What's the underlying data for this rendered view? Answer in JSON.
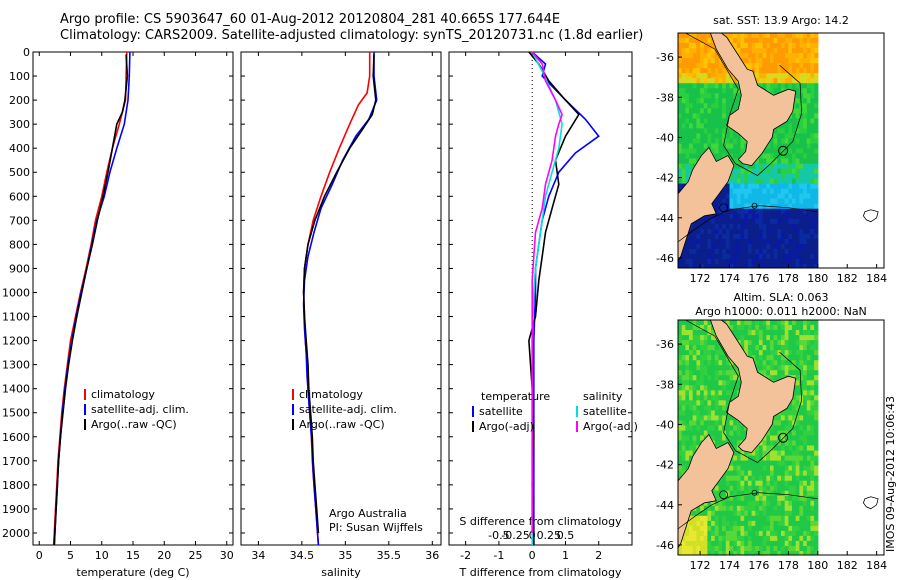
{
  "title": {
    "line1": "Argo profile: CS 5903647_60 01-Aug-2012 20120804_281 40.665S 177.644E",
    "line2": "Climatology: CARS2009. Satellite-adjusted climatology: synTS_20120731.nc (1.8d earlier)"
  },
  "colors": {
    "climatology": "#ff0000",
    "satellite": "#0000ff",
    "argo": "#000000",
    "cyan": "#00e0e0",
    "magenta": "#ff00ff",
    "land": "#f4c29a"
  },
  "side_text": "IMOS 09-Aug-2012 10:06:43",
  "chart_data": [
    {
      "type": "line",
      "panel": "temperature",
      "xlabel": "temperature (deg C)",
      "ylabel": "",
      "xlim": [
        -1,
        31
      ],
      "ylim": [
        2050,
        0
      ],
      "xticks": [
        0,
        5,
        10,
        15,
        20,
        25,
        30
      ],
      "yticks": [
        0,
        100,
        200,
        300,
        400,
        500,
        600,
        700,
        800,
        900,
        1000,
        1100,
        1200,
        1300,
        1400,
        1500,
        1600,
        1700,
        1800,
        1900,
        2000
      ],
      "legend": [
        "climatology",
        "satellite-adj. clim.",
        "Argo(..raw -QC)"
      ],
      "series": [
        {
          "name": "climatology",
          "color": "climatology",
          "points": [
            [
              14,
              0
            ],
            [
              13.9,
              100
            ],
            [
              13.8,
              200
            ],
            [
              12.8,
              300
            ],
            [
              11.7,
              400
            ],
            [
              10.8,
              500
            ],
            [
              10.0,
              600
            ],
            [
              9.0,
              700
            ],
            [
              8.3,
              800
            ],
            [
              7.5,
              900
            ],
            [
              6.6,
              1000
            ],
            [
              5.8,
              1100
            ],
            [
              5.0,
              1200
            ],
            [
              4.5,
              1300
            ],
            [
              4.0,
              1400
            ],
            [
              3.6,
              1500
            ],
            [
              3.3,
              1600
            ],
            [
              3.0,
              1700
            ],
            [
              2.8,
              1800
            ],
            [
              2.6,
              1900
            ],
            [
              2.4,
              2000
            ],
            [
              2.3,
              2050
            ]
          ]
        },
        {
          "name": "satellite-adj. clim.",
          "color": "satellite",
          "points": [
            [
              14.5,
              0
            ],
            [
              14.4,
              100
            ],
            [
              14.2,
              200
            ],
            [
              13.6,
              300
            ],
            [
              12.4,
              400
            ],
            [
              11.3,
              500
            ],
            [
              10.4,
              600
            ],
            [
              9.2,
              700
            ],
            [
              8.4,
              800
            ],
            [
              7.6,
              900
            ],
            [
              6.7,
              1000
            ],
            [
              5.9,
              1100
            ],
            [
              5.2,
              1200
            ],
            [
              4.6,
              1300
            ],
            [
              4.1,
              1400
            ],
            [
              3.7,
              1500
            ],
            [
              3.4,
              1600
            ],
            [
              3.1,
              1700
            ],
            [
              2.9,
              1800
            ],
            [
              2.7,
              1900
            ],
            [
              2.5,
              2000
            ],
            [
              2.4,
              2050
            ]
          ]
        },
        {
          "name": "Argo(..raw -QC)",
          "color": "argo",
          "points": [
            [
              13.9,
              10
            ],
            [
              14.1,
              100
            ],
            [
              13.7,
              200
            ],
            [
              13.3,
              250
            ],
            [
              12.4,
              300
            ],
            [
              11.7,
              400
            ],
            [
              11.0,
              500
            ],
            [
              10.2,
              600
            ],
            [
              9.3,
              700
            ],
            [
              8.5,
              800
            ],
            [
              7.6,
              900
            ],
            [
              6.8,
              1000
            ],
            [
              6.0,
              1100
            ],
            [
              5.3,
              1200
            ],
            [
              4.7,
              1300
            ],
            [
              4.2,
              1400
            ],
            [
              3.8,
              1500
            ],
            [
              3.4,
              1600
            ],
            [
              3.1,
              1700
            ],
            [
              2.9,
              1800
            ],
            [
              2.7,
              1900
            ],
            [
              2.5,
              2000
            ],
            [
              2.4,
              2050
            ]
          ]
        }
      ]
    },
    {
      "type": "line",
      "panel": "salinity",
      "xlabel": "salinity",
      "xlim": [
        33.8,
        36.1
      ],
      "ylim": [
        2050,
        0
      ],
      "xticks": [
        34,
        34.5,
        35,
        35.5,
        36
      ],
      "legend": [
        "climatology",
        "satellite-adj. clim.",
        "Argo(..raw -QC)"
      ],
      "annotation": [
        "Argo Australia",
        "PI: Susan Wijffels"
      ],
      "series": [
        {
          "name": "climatology",
          "color": "climatology",
          "points": [
            [
              35.28,
              0
            ],
            [
              35.28,
              100
            ],
            [
              35.25,
              170
            ],
            [
              35.15,
              220
            ],
            [
              35.05,
              300
            ],
            [
              34.93,
              400
            ],
            [
              34.82,
              500
            ],
            [
              34.72,
              600
            ],
            [
              34.63,
              700
            ],
            [
              34.57,
              800
            ],
            [
              34.53,
              900
            ],
            [
              34.52,
              1000
            ],
            [
              34.53,
              1100
            ],
            [
              34.54,
              1200
            ],
            [
              34.56,
              1300
            ],
            [
              34.57,
              1400
            ],
            [
              34.59,
              1500
            ],
            [
              34.61,
              1600
            ],
            [
              34.62,
              1700
            ],
            [
              34.64,
              1800
            ],
            [
              34.66,
              1900
            ],
            [
              34.68,
              2000
            ],
            [
              34.69,
              2050
            ]
          ]
        },
        {
          "name": "satellite-adj. clim.",
          "color": "satellite",
          "points": [
            [
              35.33,
              0
            ],
            [
              35.33,
              100
            ],
            [
              35.36,
              200
            ],
            [
              35.27,
              280
            ],
            [
              35.12,
              350
            ],
            [
              34.97,
              450
            ],
            [
              34.85,
              550
            ],
            [
              34.72,
              650
            ],
            [
              34.64,
              750
            ],
            [
              34.57,
              850
            ],
            [
              34.53,
              950
            ],
            [
              34.52,
              1050
            ],
            [
              34.53,
              1150
            ],
            [
              34.55,
              1250
            ],
            [
              34.56,
              1350
            ],
            [
              34.58,
              1450
            ],
            [
              34.6,
              1550
            ],
            [
              34.62,
              1650
            ],
            [
              34.63,
              1750
            ],
            [
              34.65,
              1850
            ],
            [
              34.67,
              1950
            ],
            [
              34.69,
              2050
            ]
          ]
        },
        {
          "name": "Argo(..raw -QC)",
          "color": "argo",
          "points": [
            [
              35.33,
              10
            ],
            [
              35.32,
              100
            ],
            [
              35.35,
              200
            ],
            [
              35.31,
              260
            ],
            [
              35.2,
              320
            ],
            [
              35.05,
              400
            ],
            [
              34.9,
              500
            ],
            [
              34.76,
              600
            ],
            [
              34.65,
              700
            ],
            [
              34.57,
              800
            ],
            [
              34.53,
              900
            ],
            [
              34.52,
              1000
            ],
            [
              34.53,
              1100
            ],
            [
              34.55,
              1200
            ],
            [
              34.57,
              1300
            ],
            [
              34.58,
              1400
            ],
            [
              34.6,
              1500
            ],
            [
              34.62,
              1600
            ],
            [
              34.63,
              1700
            ],
            [
              34.65,
              1800
            ],
            [
              34.67,
              1900
            ],
            [
              34.69,
              2000
            ]
          ]
        }
      ]
    },
    {
      "type": "line",
      "panel": "difference",
      "xlabel": "T difference from climatology",
      "top_xlabel": "S difference from climatology",
      "xlim": [
        -2.5,
        3.0
      ],
      "ylim": [
        2050,
        0
      ],
      "xticks": [
        -2,
        -1,
        0,
        1,
        2
      ],
      "s_xticks": [
        "-0.5",
        "-0.25",
        "0",
        "0.25",
        "0.5"
      ],
      "legend_temperature_title": "temperature",
      "legend_salinity_title": "salinity",
      "legend_temperature": [
        "satellite",
        "Argo(-adj)"
      ],
      "legend_salinity": [
        "satellite",
        "Argo(-adj)"
      ],
      "series": [
        {
          "name": "satellite",
          "group": "temperature",
          "color": "satellite",
          "points": [
            [
              0.0,
              0
            ],
            [
              0.4,
              50
            ],
            [
              0.3,
              100
            ],
            [
              1.0,
              200
            ],
            [
              1.6,
              280
            ],
            [
              2.0,
              350
            ],
            [
              1.3,
              420
            ],
            [
              0.8,
              500
            ],
            [
              0.5,
              600
            ],
            [
              0.3,
              700
            ],
            [
              0.2,
              800
            ],
            [
              0.1,
              900
            ],
            [
              0.1,
              1000
            ],
            [
              0.05,
              1200
            ],
            [
              0.05,
              1400
            ],
            [
              0.05,
              1600
            ],
            [
              0.05,
              1800
            ],
            [
              0.05,
              2000
            ],
            [
              0.05,
              2050
            ]
          ]
        },
        {
          "name": "Argo(-adj)",
          "group": "temperature",
          "color": "argo",
          "points": [
            [
              -0.1,
              0
            ],
            [
              0.2,
              50
            ],
            [
              0.5,
              120
            ],
            [
              1.0,
              200
            ],
            [
              1.4,
              260
            ],
            [
              1.0,
              350
            ],
            [
              0.7,
              450
            ],
            [
              0.8,
              550
            ],
            [
              0.6,
              650
            ],
            [
              0.4,
              750
            ],
            [
              0.3,
              850
            ],
            [
              0.2,
              950
            ],
            [
              0.1,
              1100
            ],
            [
              -0.1,
              1200
            ],
            [
              0.0,
              1400
            ],
            [
              0.05,
              1600
            ],
            [
              0.0,
              1800
            ],
            [
              0.05,
              2000
            ],
            [
              0.05,
              2050
            ]
          ]
        },
        {
          "name": "satellite",
          "group": "salinity",
          "color": "cyan",
          "points": [
            [
              0.0,
              0
            ],
            [
              0.3,
              80
            ],
            [
              0.7,
              200
            ],
            [
              0.9,
              300
            ],
            [
              0.8,
              400
            ],
            [
              0.6,
              500
            ],
            [
              0.4,
              600
            ],
            [
              0.3,
              700
            ],
            [
              0.2,
              800
            ],
            [
              0.1,
              900
            ],
            [
              0.05,
              1000
            ],
            [
              0.0,
              1200
            ],
            [
              0.0,
              1400
            ],
            [
              0.0,
              1600
            ],
            [
              0.0,
              1800
            ],
            [
              0.0,
              2000
            ],
            [
              0.0,
              2050
            ]
          ]
        },
        {
          "name": "Argo(-adj)",
          "group": "salinity",
          "color": "magenta",
          "points": [
            [
              0.0,
              0
            ],
            [
              0.3,
              50
            ],
            [
              0.4,
              120
            ],
            [
              0.7,
              200
            ],
            [
              0.9,
              260
            ],
            [
              0.8,
              300
            ],
            [
              0.7,
              350
            ],
            [
              0.6,
              450
            ],
            [
              0.4,
              550
            ],
            [
              0.3,
              650
            ],
            [
              0.1,
              750
            ],
            [
              0.05,
              850
            ],
            [
              0.0,
              950
            ],
            [
              0.0,
              1100
            ],
            [
              0.0,
              1300
            ],
            [
              0.0,
              1500
            ],
            [
              0.0,
              1700
            ],
            [
              0.0,
              1900
            ],
            [
              0.0,
              2000
            ]
          ]
        }
      ]
    },
    {
      "type": "heatmap",
      "panel": "sst-map",
      "title": "sat. SST: 13.9 Argo: 14.2",
      "xlim": [
        170.5,
        184.5
      ],
      "ylim": [
        -46.5,
        -34.8
      ],
      "xticks": [
        172,
        174,
        176,
        178,
        180,
        182,
        184
      ],
      "yticks": [
        -36,
        -38,
        -40,
        -42,
        -44,
        -46
      ],
      "marker": {
        "lon": 177.644,
        "lat": -40.665
      }
    },
    {
      "type": "heatmap",
      "panel": "sla-map",
      "title_line1": "Altim. SLA: 0.063",
      "title_line2": "Argo h1000: 0.011 h2000: NaN",
      "xlim": [
        170.5,
        184.5
      ],
      "ylim": [
        -46.5,
        -34.8
      ],
      "xticks": [
        172,
        174,
        176,
        178,
        180,
        182,
        184
      ],
      "yticks": [
        -36,
        -38,
        -40,
        -42,
        -44,
        -46
      ],
      "marker": {
        "lon": 177.644,
        "lat": -40.665
      }
    }
  ]
}
